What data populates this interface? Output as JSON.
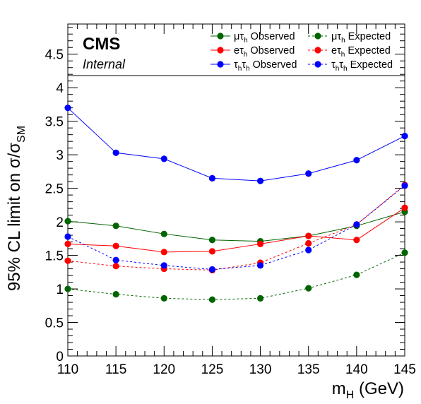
{
  "chart_data": {
    "type": "line",
    "x": [
      110,
      115,
      120,
      125,
      130,
      135,
      140,
      145
    ],
    "xlabel": "m_H (GeV)",
    "ylabel": "95% CL limit on σ/σ_SM",
    "xlim": [
      110,
      145
    ],
    "ylim": [
      0,
      4.95
    ],
    "x_ticks": [
      "110",
      "115",
      "120",
      "125",
      "130",
      "135",
      "140",
      "145"
    ],
    "y_ticks": [
      "0",
      "0.5",
      "1",
      "1.5",
      "2",
      "2.5",
      "3",
      "3.5",
      "4",
      "4.5"
    ],
    "grid": false,
    "legend_position": "top-right",
    "experiment_label": "CMS",
    "status_label": "Internal",
    "series": [
      {
        "name": "μτ_h Observed",
        "legend_main": "μτ",
        "legend_sub": "h",
        "legend_suffix": " Observed",
        "color": "#006400",
        "dashed": false,
        "values": [
          2.01,
          1.94,
          1.82,
          1.73,
          1.71,
          1.79,
          1.94,
          2.15
        ]
      },
      {
        "name": "eτ_h Observed",
        "legend_main": "eτ",
        "legend_sub": "h",
        "legend_suffix": " Observed",
        "color": "#ff0000",
        "dashed": false,
        "values": [
          1.67,
          1.64,
          1.55,
          1.56,
          1.67,
          1.79,
          1.73,
          2.21
        ]
      },
      {
        "name": "τ_hτ_h Observed",
        "legend_main": "ττ",
        "legend_sub": "hh",
        "legend_suffix": " Observed",
        "color": "#0000ff",
        "dashed": false,
        "values": [
          3.7,
          3.03,
          2.94,
          2.65,
          2.61,
          2.72,
          2.92,
          3.28
        ]
      },
      {
        "name": "μτ_h Expected",
        "legend_main": "μτ",
        "legend_sub": "h",
        "legend_suffix": " Expected",
        "color": "#006400",
        "dashed": true,
        "values": [
          1.0,
          0.92,
          0.86,
          0.84,
          0.86,
          1.01,
          1.21,
          1.54
        ]
      },
      {
        "name": "eτ_h Expected",
        "legend_main": "eτ",
        "legend_sub": "h",
        "legend_suffix": " Expected",
        "color": "#ff0000",
        "dashed": true,
        "values": [
          1.42,
          1.34,
          1.3,
          1.28,
          1.39,
          1.68,
          1.96,
          2.55
        ]
      },
      {
        "name": "τ_hτ_h Expected",
        "legend_main": "ττ",
        "legend_sub": "hh",
        "legend_suffix": " Expected",
        "color": "#0000ff",
        "dashed": true,
        "values": [
          1.78,
          1.43,
          1.35,
          1.29,
          1.35,
          1.58,
          1.96,
          2.54
        ]
      }
    ]
  }
}
